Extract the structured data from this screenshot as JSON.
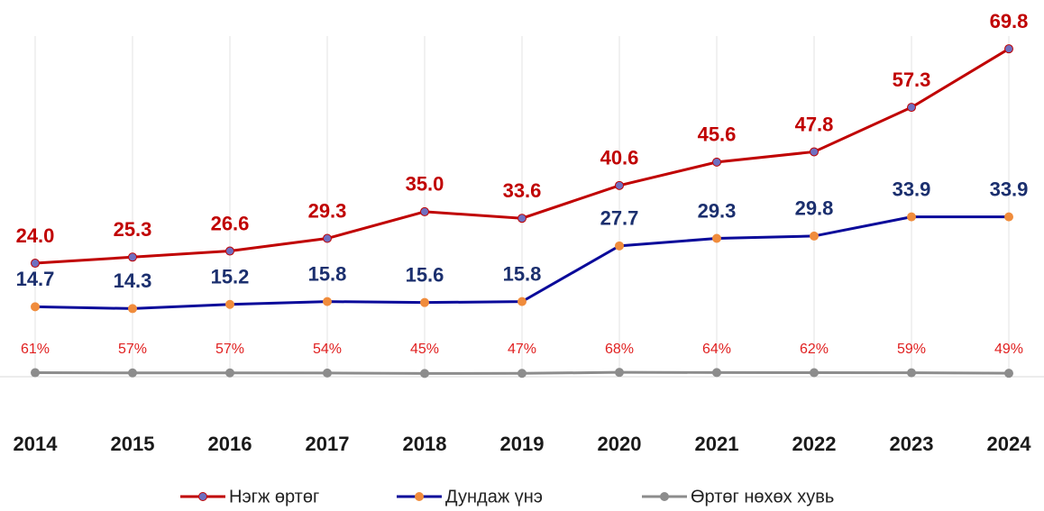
{
  "chart_data": {
    "type": "line",
    "categories": [
      "2014",
      "2015",
      "2016",
      "2017",
      "2018",
      "2019",
      "2020",
      "2021",
      "2022",
      "2023",
      "2024"
    ],
    "ylim": [
      0,
      80
    ],
    "series": [
      {
        "name": "Нэгж өртөг",
        "color": "#c00000",
        "marker_color": "#6f6fc0",
        "values": [
          24.0,
          25.3,
          26.6,
          29.3,
          35.0,
          33.6,
          40.6,
          45.6,
          47.8,
          57.3,
          69.8
        ],
        "value_labels": [
          "24.0",
          "25.3",
          "26.6",
          "29.3",
          "35.0",
          "33.6",
          "40.6",
          "45.6",
          "47.8",
          "57.3",
          "69.8"
        ]
      },
      {
        "name": "Дундаж үнэ",
        "color": "#0a0a9a",
        "marker_color": "#f08c3c",
        "values": [
          14.7,
          14.3,
          15.2,
          15.8,
          15.6,
          15.8,
          27.7,
          29.3,
          29.8,
          33.9,
          33.9
        ]
      },
      {
        "name": "Өртөг нөхөх хувь",
        "color": "#8c8c8c",
        "marker_color": "#8c8c8c",
        "values": [
          0.61,
          0.57,
          0.57,
          0.54,
          0.45,
          0.47,
          0.68,
          0.64,
          0.62,
          0.59,
          0.49
        ],
        "value_labels": [
          "61%",
          "57%",
          "57%",
          "54%",
          "45%",
          "47%",
          "68%",
          "64%",
          "62%",
          "59%",
          "49%"
        ]
      }
    ]
  }
}
